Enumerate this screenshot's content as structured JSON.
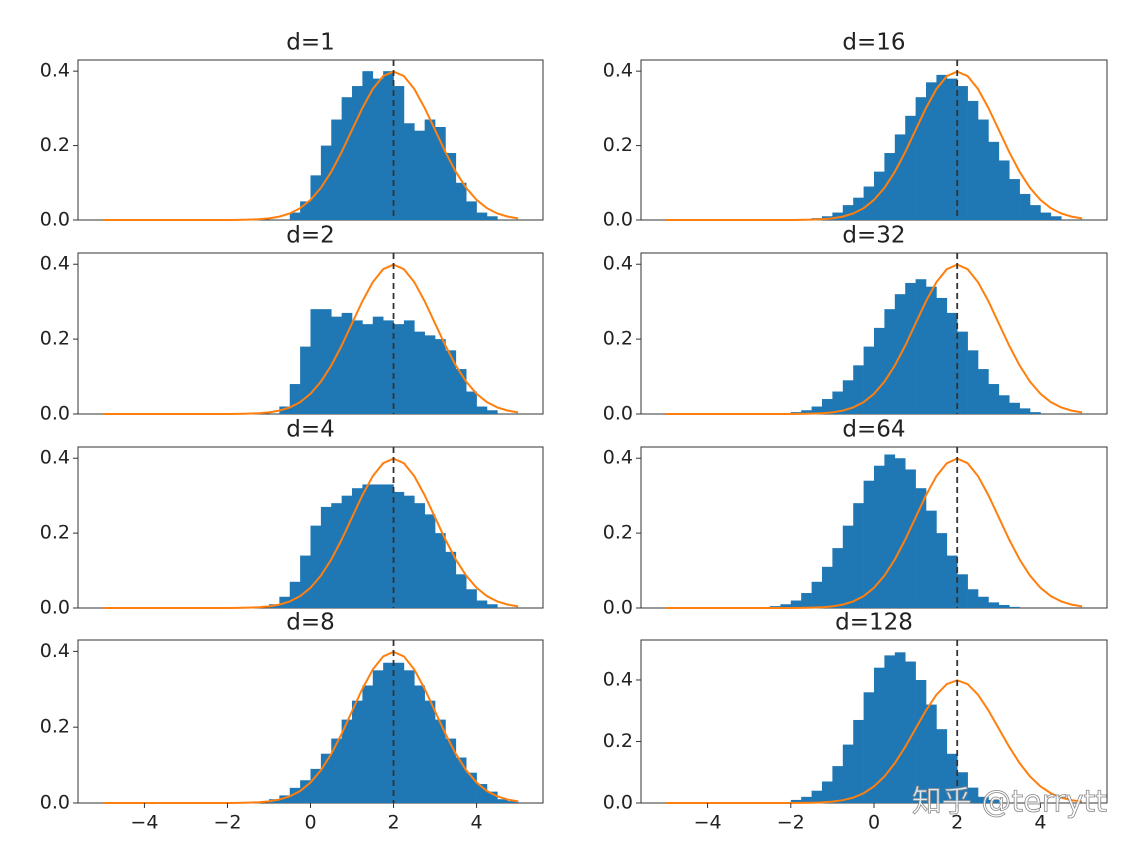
{
  "chart_data": [
    {
      "type": "histogram",
      "title": "d=1",
      "color": "#1f77b4",
      "bins": [
        -0.5,
        -0.25,
        0,
        0.25,
        0.5,
        0.75,
        1,
        1.25,
        1.5,
        1.75,
        2,
        2.25,
        2.5,
        2.75,
        3,
        3.25,
        3.5,
        3.75,
        4,
        4.25,
        4.5
      ],
      "values": [
        0.02,
        0.05,
        0.12,
        0.2,
        0.27,
        0.33,
        0.36,
        0.4,
        0.38,
        0.4,
        0.36,
        0.26,
        0.24,
        0.27,
        0.25,
        0.18,
        0.1,
        0.05,
        0.02,
        0.01
      ],
      "curve": {
        "color": "#ff7f0e",
        "x": [
          -5,
          -4.75,
          -4.5,
          -4.25,
          -4,
          -3.75,
          -3.5,
          -3.25,
          -3,
          -2.75,
          -2.5,
          -2.25,
          -2,
          -1.75,
          -1.5,
          -1.25,
          -1,
          -0.75,
          -0.5,
          -0.25,
          0,
          0.25,
          0.5,
          0.75,
          1,
          1.25,
          1.5,
          1.75,
          2,
          2.25,
          2.5,
          2.75,
          3,
          3.25,
          3.5,
          3.75,
          4,
          4.25,
          4.5,
          4.75,
          5
        ],
        "values": [
          0,
          0,
          0,
          0,
          0,
          0,
          0,
          0,
          0,
          0,
          0,
          0,
          0.0001,
          0.0004,
          0.0009,
          0.002,
          0.0044,
          0.0091,
          0.0175,
          0.0317,
          0.054,
          0.0863,
          0.1295,
          0.1826,
          0.242,
          0.3011,
          0.3521,
          0.3867,
          0.3989,
          0.3867,
          0.3521,
          0.3011,
          0.242,
          0.1826,
          0.1295,
          0.0863,
          0.054,
          0.0317,
          0.0175,
          0.0091,
          0.0044
        ]
      },
      "vline": 2,
      "xlim": [
        -5.6,
        5.6
      ],
      "ylim": [
        0,
        0.43
      ],
      "yticks": [
        {
          "value": 0,
          "label": "0.0"
        },
        0.2,
        0.4
      ]
    },
    {
      "type": "histogram",
      "title": "d=2",
      "color": "#1f77b4",
      "bins": [
        -0.75,
        -0.5,
        -0.25,
        0,
        0.25,
        0.5,
        0.75,
        1,
        1.25,
        1.5,
        1.75,
        2,
        2.25,
        2.5,
        2.75,
        3,
        3.25,
        3.5,
        3.75,
        4,
        4.25,
        4.5
      ],
      "values": [
        0.02,
        0.08,
        0.18,
        0.28,
        0.28,
        0.26,
        0.27,
        0.25,
        0.24,
        0.26,
        0.25,
        0.24,
        0.25,
        0.22,
        0.21,
        0.2,
        0.17,
        0.12,
        0.06,
        0.02,
        0.01
      ],
      "curve": {
        "color": "#ff7f0e",
        "x": [
          -5,
          -4.75,
          -4.5,
          -4.25,
          -4,
          -3.75,
          -3.5,
          -3.25,
          -3,
          -2.75,
          -2.5,
          -2.25,
          -2,
          -1.75,
          -1.5,
          -1.25,
          -1,
          -0.75,
          -0.5,
          -0.25,
          0,
          0.25,
          0.5,
          0.75,
          1,
          1.25,
          1.5,
          1.75,
          2,
          2.25,
          2.5,
          2.75,
          3,
          3.25,
          3.5,
          3.75,
          4,
          4.25,
          4.5,
          4.75,
          5
        ],
        "values": [
          0,
          0,
          0,
          0,
          0,
          0,
          0,
          0,
          0,
          0,
          0,
          0,
          0.0001,
          0.0004,
          0.0009,
          0.002,
          0.0044,
          0.0091,
          0.0175,
          0.0317,
          0.054,
          0.0863,
          0.1295,
          0.1826,
          0.242,
          0.3011,
          0.3521,
          0.3867,
          0.3989,
          0.3867,
          0.3521,
          0.3011,
          0.242,
          0.1826,
          0.1295,
          0.0863,
          0.054,
          0.0317,
          0.0175,
          0.0091,
          0.0044
        ]
      },
      "vline": 2,
      "xlim": [
        -5.6,
        5.6
      ],
      "ylim": [
        0,
        0.43
      ],
      "yticks": [
        {
          "value": 0,
          "label": "0.0"
        },
        0.2,
        0.4
      ]
    },
    {
      "type": "histogram",
      "title": "d=4",
      "color": "#1f77b4",
      "bins": [
        -1,
        -0.75,
        -0.5,
        -0.25,
        0,
        0.25,
        0.5,
        0.75,
        1,
        1.25,
        1.5,
        1.75,
        2,
        2.25,
        2.5,
        2.75,
        3,
        3.25,
        3.5,
        3.75,
        4,
        4.25,
        4.5
      ],
      "values": [
        0.01,
        0.03,
        0.07,
        0.14,
        0.22,
        0.27,
        0.28,
        0.3,
        0.32,
        0.33,
        0.33,
        0.33,
        0.31,
        0.3,
        0.28,
        0.25,
        0.2,
        0.15,
        0.09,
        0.05,
        0.02,
        0.01
      ],
      "curve": {
        "color": "#ff7f0e",
        "x": [
          -5,
          -4.75,
          -4.5,
          -4.25,
          -4,
          -3.75,
          -3.5,
          -3.25,
          -3,
          -2.75,
          -2.5,
          -2.25,
          -2,
          -1.75,
          -1.5,
          -1.25,
          -1,
          -0.75,
          -0.5,
          -0.25,
          0,
          0.25,
          0.5,
          0.75,
          1,
          1.25,
          1.5,
          1.75,
          2,
          2.25,
          2.5,
          2.75,
          3,
          3.25,
          3.5,
          3.75,
          4,
          4.25,
          4.5,
          4.75,
          5
        ],
        "values": [
          0,
          0,
          0,
          0,
          0,
          0,
          0,
          0,
          0,
          0,
          0,
          0,
          0.0001,
          0.0004,
          0.0009,
          0.002,
          0.0044,
          0.0091,
          0.0175,
          0.0317,
          0.054,
          0.0863,
          0.1295,
          0.1826,
          0.242,
          0.3011,
          0.3521,
          0.3867,
          0.3989,
          0.3867,
          0.3521,
          0.3011,
          0.242,
          0.1826,
          0.1295,
          0.0863,
          0.054,
          0.0317,
          0.0175,
          0.0091,
          0.0044
        ]
      },
      "vline": 2,
      "xlim": [
        -5.6,
        5.6
      ],
      "ylim": [
        0,
        0.43
      ],
      "yticks": [
        {
          "value": 0,
          "label": "0.0"
        },
        0.2,
        0.4
      ]
    },
    {
      "type": "histogram",
      "title": "d=8",
      "color": "#1f77b4",
      "bins": [
        -1,
        -0.75,
        -0.5,
        -0.25,
        0,
        0.25,
        0.5,
        0.75,
        1,
        1.25,
        1.5,
        1.75,
        2,
        2.25,
        2.5,
        2.75,
        3,
        3.25,
        3.5,
        3.75,
        4,
        4.25,
        4.5,
        4.75,
        5
      ],
      "values": [
        0.01,
        0.02,
        0.04,
        0.06,
        0.09,
        0.13,
        0.17,
        0.22,
        0.27,
        0.31,
        0.35,
        0.37,
        0.37,
        0.35,
        0.31,
        0.27,
        0.22,
        0.17,
        0.12,
        0.08,
        0.05,
        0.03,
        0.01,
        0.005
      ],
      "curve": {
        "color": "#ff7f0e",
        "x": [
          -5,
          -4.75,
          -4.5,
          -4.25,
          -4,
          -3.75,
          -3.5,
          -3.25,
          -3,
          -2.75,
          -2.5,
          -2.25,
          -2,
          -1.75,
          -1.5,
          -1.25,
          -1,
          -0.75,
          -0.5,
          -0.25,
          0,
          0.25,
          0.5,
          0.75,
          1,
          1.25,
          1.5,
          1.75,
          2,
          2.25,
          2.5,
          2.75,
          3,
          3.25,
          3.5,
          3.75,
          4,
          4.25,
          4.5,
          4.75,
          5
        ],
        "values": [
          0,
          0,
          0,
          0,
          0,
          0,
          0,
          0,
          0,
          0,
          0,
          0,
          0.0001,
          0.0004,
          0.0009,
          0.002,
          0.0044,
          0.0091,
          0.0175,
          0.0317,
          0.054,
          0.0863,
          0.1295,
          0.1826,
          0.242,
          0.3011,
          0.3521,
          0.3867,
          0.3989,
          0.3867,
          0.3521,
          0.3011,
          0.242,
          0.1826,
          0.1295,
          0.0863,
          0.054,
          0.0317,
          0.0175,
          0.0091,
          0.0044
        ]
      },
      "vline": 2,
      "xlim": [
        -5.6,
        5.6
      ],
      "ylim": [
        0,
        0.43
      ],
      "yticks": [
        {
          "value": 0,
          "label": "0.0"
        },
        0.2,
        0.4
      ],
      "xticks": [
        {
          "value": -4,
          "label": "−4"
        },
        {
          "value": -2,
          "label": "−2"
        },
        0,
        2,
        4
      ]
    },
    {
      "type": "histogram",
      "title": "d=16",
      "color": "#1f77b4",
      "bins": [
        -1.5,
        -1.25,
        -1,
        -0.75,
        -0.5,
        -0.25,
        0,
        0.25,
        0.5,
        0.75,
        1,
        1.25,
        1.5,
        1.75,
        2,
        2.25,
        2.5,
        2.75,
        3,
        3.25,
        3.5,
        3.75,
        4,
        4.25,
        4.5
      ],
      "values": [
        0.005,
        0.01,
        0.02,
        0.04,
        0.06,
        0.09,
        0.13,
        0.18,
        0.23,
        0.28,
        0.33,
        0.37,
        0.39,
        0.38,
        0.36,
        0.32,
        0.27,
        0.21,
        0.16,
        0.11,
        0.07,
        0.04,
        0.02,
        0.01
      ],
      "curve": {
        "color": "#ff7f0e",
        "x": [
          -5,
          -4.75,
          -4.5,
          -4.25,
          -4,
          -3.75,
          -3.5,
          -3.25,
          -3,
          -2.75,
          -2.5,
          -2.25,
          -2,
          -1.75,
          -1.5,
          -1.25,
          -1,
          -0.75,
          -0.5,
          -0.25,
          0,
          0.25,
          0.5,
          0.75,
          1,
          1.25,
          1.5,
          1.75,
          2,
          2.25,
          2.5,
          2.75,
          3,
          3.25,
          3.5,
          3.75,
          4,
          4.25,
          4.5,
          4.75,
          5
        ],
        "values": [
          0,
          0,
          0,
          0,
          0,
          0,
          0,
          0,
          0,
          0,
          0,
          0,
          0.0001,
          0.0004,
          0.0009,
          0.002,
          0.0044,
          0.0091,
          0.0175,
          0.0317,
          0.054,
          0.0863,
          0.1295,
          0.1826,
          0.242,
          0.3011,
          0.3521,
          0.3867,
          0.3989,
          0.3867,
          0.3521,
          0.3011,
          0.242,
          0.1826,
          0.1295,
          0.0863,
          0.054,
          0.0317,
          0.0175,
          0.0091,
          0.0044
        ]
      },
      "vline": 2,
      "xlim": [
        -5.6,
        5.6
      ],
      "ylim": [
        0,
        0.43
      ],
      "yticks": [
        {
          "value": 0,
          "label": "0.0"
        },
        0.2,
        0.4
      ]
    },
    {
      "type": "histogram",
      "title": "d=32",
      "color": "#1f77b4",
      "bins": [
        -2,
        -1.75,
        -1.5,
        -1.25,
        -1,
        -0.75,
        -0.5,
        -0.25,
        0,
        0.25,
        0.5,
        0.75,
        1,
        1.25,
        1.5,
        1.75,
        2,
        2.25,
        2.5,
        2.75,
        3,
        3.25,
        3.5,
        3.75,
        4
      ],
      "values": [
        0.005,
        0.01,
        0.02,
        0.04,
        0.06,
        0.09,
        0.13,
        0.18,
        0.23,
        0.28,
        0.32,
        0.35,
        0.36,
        0.34,
        0.31,
        0.27,
        0.22,
        0.17,
        0.12,
        0.08,
        0.05,
        0.03,
        0.015,
        0.005
      ],
      "curve": {
        "color": "#ff7f0e",
        "x": [
          -5,
          -4.75,
          -4.5,
          -4.25,
          -4,
          -3.75,
          -3.5,
          -3.25,
          -3,
          -2.75,
          -2.5,
          -2.25,
          -2,
          -1.75,
          -1.5,
          -1.25,
          -1,
          -0.75,
          -0.5,
          -0.25,
          0,
          0.25,
          0.5,
          0.75,
          1,
          1.25,
          1.5,
          1.75,
          2,
          2.25,
          2.5,
          2.75,
          3,
          3.25,
          3.5,
          3.75,
          4,
          4.25,
          4.5,
          4.75,
          5
        ],
        "values": [
          0,
          0,
          0,
          0,
          0,
          0,
          0,
          0,
          0,
          0,
          0,
          0,
          0.0001,
          0.0004,
          0.0009,
          0.002,
          0.0044,
          0.0091,
          0.0175,
          0.0317,
          0.054,
          0.0863,
          0.1295,
          0.1826,
          0.242,
          0.3011,
          0.3521,
          0.3867,
          0.3989,
          0.3867,
          0.3521,
          0.3011,
          0.242,
          0.1826,
          0.1295,
          0.0863,
          0.054,
          0.0317,
          0.0175,
          0.0091,
          0.0044
        ]
      },
      "vline": 2,
      "xlim": [
        -5.6,
        5.6
      ],
      "ylim": [
        0,
        0.43
      ],
      "yticks": [
        {
          "value": 0,
          "label": "0.0"
        },
        0.2,
        0.4
      ]
    },
    {
      "type": "histogram",
      "title": "d=64",
      "color": "#1f77b4",
      "bins": [
        -2.5,
        -2.25,
        -2,
        -1.75,
        -1.5,
        -1.25,
        -1,
        -0.75,
        -0.5,
        -0.25,
        0,
        0.25,
        0.5,
        0.75,
        1,
        1.25,
        1.5,
        1.75,
        2,
        2.25,
        2.5,
        2.75,
        3,
        3.25,
        3.5
      ],
      "values": [
        0.005,
        0.01,
        0.02,
        0.04,
        0.07,
        0.11,
        0.16,
        0.22,
        0.28,
        0.34,
        0.38,
        0.41,
        0.4,
        0.37,
        0.32,
        0.26,
        0.2,
        0.14,
        0.09,
        0.05,
        0.03,
        0.015,
        0.008,
        0.003
      ],
      "curve": {
        "color": "#ff7f0e",
        "x": [
          -5,
          -4.75,
          -4.5,
          -4.25,
          -4,
          -3.75,
          -3.5,
          -3.25,
          -3,
          -2.75,
          -2.5,
          -2.25,
          -2,
          -1.75,
          -1.5,
          -1.25,
          -1,
          -0.75,
          -0.5,
          -0.25,
          0,
          0.25,
          0.5,
          0.75,
          1,
          1.25,
          1.5,
          1.75,
          2,
          2.25,
          2.5,
          2.75,
          3,
          3.25,
          3.5,
          3.75,
          4,
          4.25,
          4.5,
          4.75,
          5
        ],
        "values": [
          0,
          0,
          0,
          0,
          0,
          0,
          0,
          0,
          0,
          0,
          0,
          0,
          0.0001,
          0.0004,
          0.0009,
          0.002,
          0.0044,
          0.0091,
          0.0175,
          0.0317,
          0.054,
          0.0863,
          0.1295,
          0.1826,
          0.242,
          0.3011,
          0.3521,
          0.3867,
          0.3989,
          0.3867,
          0.3521,
          0.3011,
          0.242,
          0.1826,
          0.1295,
          0.0863,
          0.054,
          0.0317,
          0.0175,
          0.0091,
          0.0044
        ]
      },
      "vline": 2,
      "xlim": [
        -5.6,
        5.6
      ],
      "ylim": [
        0,
        0.43
      ],
      "yticks": [
        {
          "value": 0,
          "label": "0.0"
        },
        0.2,
        0.4
      ]
    },
    {
      "type": "histogram",
      "title": "d=128",
      "color": "#1f77b4",
      "bins": [
        -2,
        -1.75,
        -1.5,
        -1.25,
        -1,
        -0.75,
        -0.5,
        -0.25,
        0,
        0.25,
        0.5,
        0.75,
        1,
        1.25,
        1.5,
        1.75,
        2,
        2.25,
        2.5,
        2.75,
        3
      ],
      "values": [
        0.01,
        0.02,
        0.04,
        0.07,
        0.12,
        0.19,
        0.27,
        0.36,
        0.44,
        0.48,
        0.49,
        0.46,
        0.4,
        0.32,
        0.24,
        0.16,
        0.1,
        0.05,
        0.02,
        0.01
      ],
      "curve": {
        "color": "#ff7f0e",
        "x": [
          -5,
          -4.75,
          -4.5,
          -4.25,
          -4,
          -3.75,
          -3.5,
          -3.25,
          -3,
          -2.75,
          -2.5,
          -2.25,
          -2,
          -1.75,
          -1.5,
          -1.25,
          -1,
          -0.75,
          -0.5,
          -0.25,
          0,
          0.25,
          0.5,
          0.75,
          1,
          1.25,
          1.5,
          1.75,
          2,
          2.25,
          2.5,
          2.75,
          3,
          3.25,
          3.5,
          3.75,
          4,
          4.25,
          4.5,
          4.75,
          5
        ],
        "values": [
          0,
          0,
          0,
          0,
          0,
          0,
          0,
          0,
          0,
          0,
          0,
          0,
          0.0001,
          0.0004,
          0.0009,
          0.002,
          0.0044,
          0.0091,
          0.0175,
          0.0317,
          0.054,
          0.0863,
          0.1295,
          0.1826,
          0.242,
          0.3011,
          0.3521,
          0.3867,
          0.3989,
          0.3867,
          0.3521,
          0.3011,
          0.242,
          0.1826,
          0.1295,
          0.0863,
          0.054,
          0.0317,
          0.0175,
          0.0091,
          0.0044
        ]
      },
      "vline": 2,
      "xlim": [
        -5.6,
        5.6
      ],
      "ylim": [
        0,
        0.53
      ],
      "yticks": [
        {
          "value": 0,
          "label": "0.0"
        },
        0.2,
        0.4
      ],
      "xticks": [
        {
          "value": -4,
          "label": "−4"
        },
        {
          "value": -2,
          "label": "−2"
        },
        0,
        2,
        4
      ],
      "watermark": "知乎 @terrytt"
    }
  ]
}
